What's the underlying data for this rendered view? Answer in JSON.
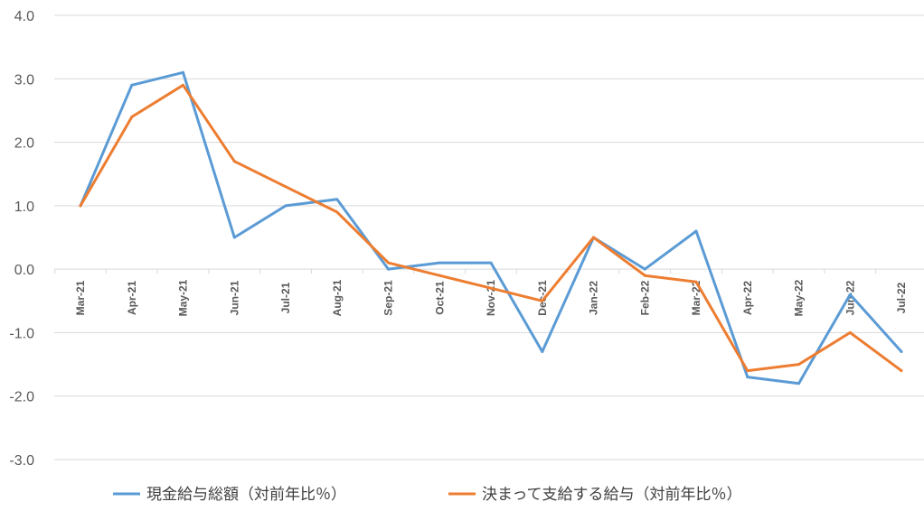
{
  "chart_data": {
    "type": "line",
    "title": "",
    "xlabel": "",
    "ylabel": "",
    "ylim": [
      -3.0,
      4.0
    ],
    "yticks": [
      "4.0",
      "3.0",
      "2.0",
      "1.0",
      "0.0",
      "-1.0",
      "-2.0",
      "-3.0"
    ],
    "ytick_values": [
      4,
      3,
      2,
      1,
      0,
      -1,
      -2,
      -3
    ],
    "grid": true,
    "legend_position": "bottom",
    "categories": [
      "Mar-21",
      "Apr-21",
      "May-21",
      "Jun-21",
      "Jul-21",
      "Aug-21",
      "Sep-21",
      "Oct-21",
      "Nov-21",
      "Dec-21",
      "Jan-22",
      "Feb-22",
      "Mar-22",
      "Apr-22",
      "May-22",
      "Jun-22",
      "Jul-22"
    ],
    "series": [
      {
        "name": "現金給与総額（対前年比％）",
        "color": "#5b9bd5",
        "values": [
          1.0,
          2.9,
          3.1,
          0.5,
          1.0,
          1.1,
          0.0,
          0.1,
          0.1,
          -1.3,
          0.5,
          0.0,
          0.6,
          -1.7,
          -1.8,
          -0.4,
          -1.3
        ]
      },
      {
        "name": "決まって支給する給与（対前年比％）",
        "color": "#ed7d31",
        "values": [
          1.0,
          2.4,
          2.9,
          1.7,
          1.3,
          0.9,
          0.1,
          -0.1,
          -0.3,
          -0.5,
          0.5,
          -0.1,
          -0.2,
          -1.6,
          -1.5,
          -1.0,
          -1.6
        ]
      }
    ]
  }
}
